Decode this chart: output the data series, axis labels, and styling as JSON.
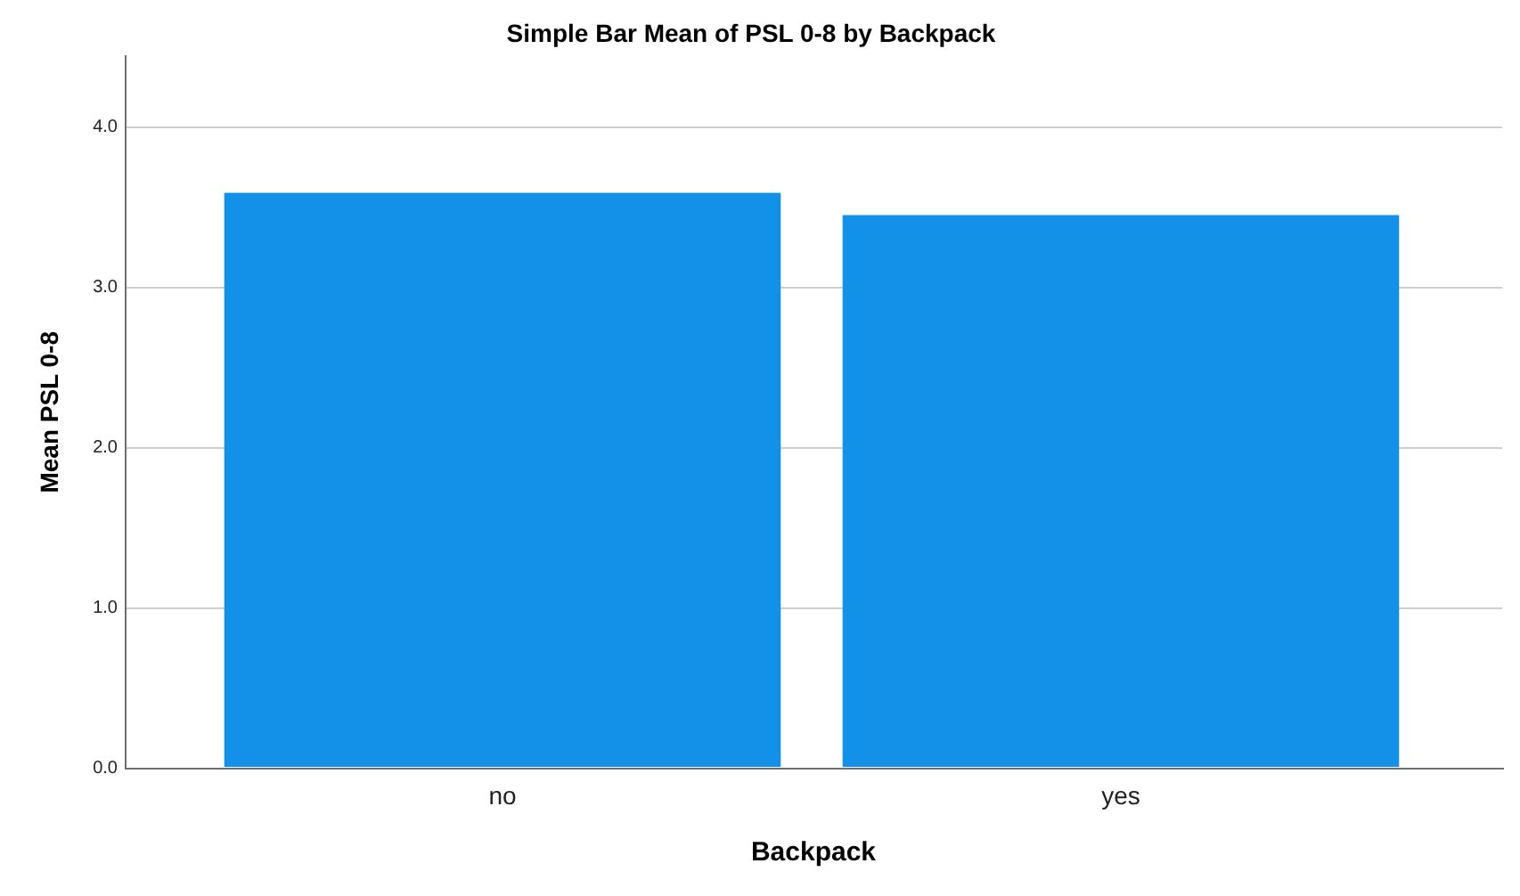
{
  "chart_data": {
    "type": "bar",
    "title": "Simple Bar Mean of PSL 0-8 by Backpack",
    "xlabel": "Backpack",
    "ylabel": "Mean PSL 0-8",
    "categories": [
      "no",
      "yes"
    ],
    "values": [
      3.59,
      3.45
    ],
    "color": "#1391e8",
    "ylim": [
      0,
      4.44
    ],
    "yticks": [
      {
        "value": 0,
        "label": "0.0"
      },
      {
        "value": 1,
        "label": "1.0"
      },
      {
        "value": 2,
        "label": "2.0"
      },
      {
        "value": 3,
        "label": "3.0"
      },
      {
        "value": 4,
        "label": "4.0"
      }
    ],
    "grid": "y"
  }
}
